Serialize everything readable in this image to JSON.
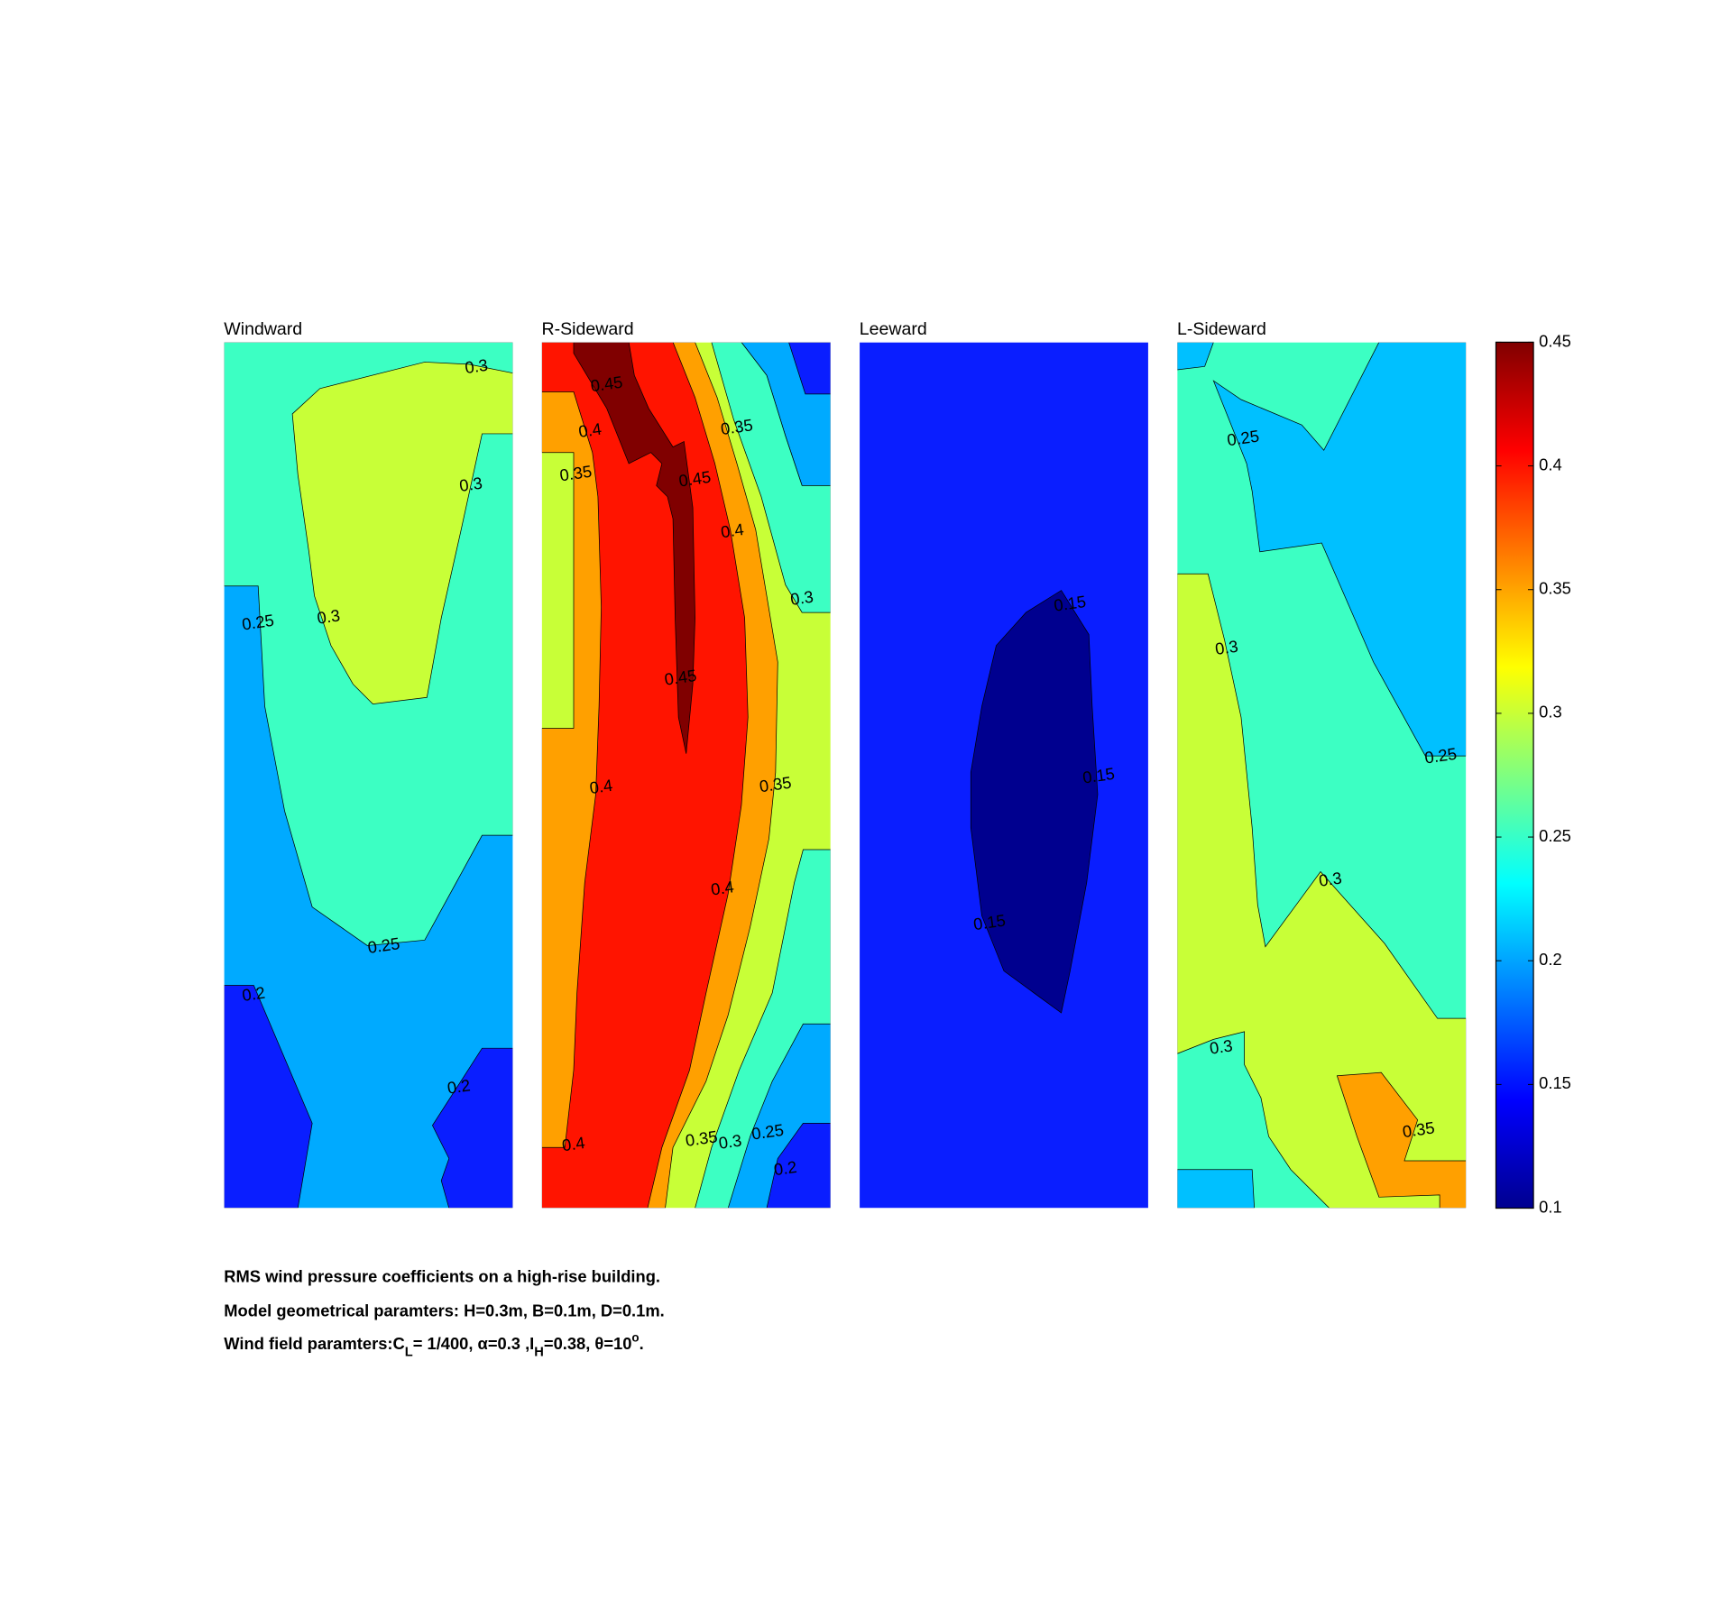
{
  "chart_data": {
    "type": "contour",
    "colormap": "jet",
    "clim": [
      0.1,
      0.45
    ],
    "levels": [
      0.1,
      0.15,
      0.2,
      0.25,
      0.3,
      0.35,
      0.4,
      0.45
    ],
    "band_colors": {
      "0.10-0.15": "#00008f",
      "0.15-0.20": "#0a1eff",
      "0.20-0.25": "#00aaff",
      "0.20-0.25_alt": "#00c0ff",
      "0.25-0.30": "#3cffc3",
      "0.30-0.35": "#c8ff37",
      "0.35-0.40": "#ffa000",
      "0.40-0.45": "#ff1400",
      "0.45+": "#800000"
    },
    "panels": [
      {
        "title": "Windward",
        "labels": [
          "0.3",
          "0.3",
          "0.25",
          "0.3",
          "0.25",
          "0.2",
          "0.2"
        ]
      },
      {
        "title": "R-Sideward",
        "labels": [
          "0.45",
          "0.4",
          "0.35",
          "0.35",
          "0.45",
          "0.4",
          "0.3",
          "0.45",
          "0.4",
          "0.35",
          "0.4",
          "0.4",
          "0.35",
          "0.3",
          "0.25",
          "0.2"
        ]
      },
      {
        "title": "Leeward",
        "labels": [
          "0.15",
          "0.15",
          "0.15"
        ]
      },
      {
        "title": "L-Sideward",
        "labels": [
          "0.25",
          "0.3",
          "0.25",
          "0.3",
          "0.3",
          "0.35"
        ]
      }
    ],
    "colorbar": {
      "ticks": [
        "0.45",
        "0.4",
        "0.35",
        "0.3",
        "0.25",
        "0.2",
        "0.15",
        "0.1"
      ]
    }
  },
  "caption": {
    "line1": "RMS wind pressure coefficients on a high-rise building.",
    "line2": "Model geometrical paramters: H=0.3m, B=0.1m, D=0.1m.",
    "line3": {
      "a": "Wind field paramters:C",
      "a_sub": "L",
      "b": "= 1/400, α=0.3 ,I",
      "b_sub": "H",
      "c": "=0.38, θ=10",
      "c_sup": "o",
      "d": "."
    }
  }
}
